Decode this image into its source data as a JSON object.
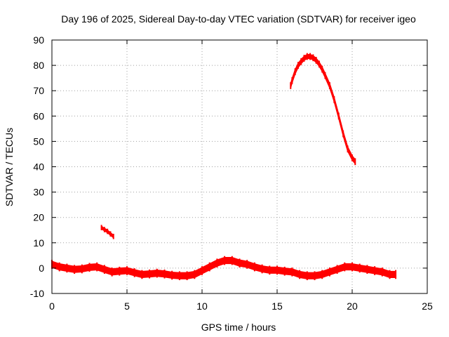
{
  "chart_data": {
    "type": "scatter",
    "title": "Day 196 of 2025, Sidereal Day-to-day VTEC variation (SDTVAR) for receiver igeo",
    "xlabel": "GPS time / hours",
    "ylabel": "SDTVAR / TECUs",
    "xlim": [
      0,
      25
    ],
    "ylim": [
      -10,
      90
    ],
    "xticks": [
      0,
      5,
      10,
      15,
      20,
      25
    ],
    "yticks": [
      -10,
      0,
      10,
      20,
      30,
      40,
      50,
      60,
      70,
      80,
      90
    ],
    "grid": true,
    "series_color": "#ff0000",
    "series": [
      {
        "name": "baseline",
        "band_halfwidth": 1.2,
        "x": [
          0,
          0.5,
          1,
          1.5,
          2,
          2.5,
          3,
          3.5,
          4,
          4.5,
          5,
          5.5,
          6,
          6.5,
          7,
          7.5,
          8,
          8.5,
          9,
          9.5,
          10,
          10.5,
          11,
          11.5,
          12,
          12.5,
          13,
          13.5,
          14,
          14.5,
          15,
          15.5,
          16,
          16.5,
          17,
          17.5,
          18,
          18.5,
          19,
          19.5,
          20,
          20.5,
          21,
          21.5,
          22,
          22.5,
          22.9
        ],
        "y": [
          1.5,
          0.5,
          0,
          -0.5,
          -0.3,
          0.3,
          0.5,
          -0.5,
          -1.5,
          -1.2,
          -1,
          -1.8,
          -2.5,
          -2.3,
          -2,
          -2.3,
          -2.8,
          -3,
          -3,
          -2.5,
          -1,
          0.5,
          2,
          3,
          3,
          2,
          1.5,
          0.5,
          -0.3,
          -0.8,
          -0.8,
          -1.2,
          -1.5,
          -2.5,
          -3,
          -3,
          -2.5,
          -1.5,
          -0.5,
          0.5,
          0.5,
          0,
          -0.5,
          -1,
          -1.5,
          -2.5,
          -2.5
        ]
      },
      {
        "name": "spike-1",
        "band_halfwidth": 0.5,
        "x": [
          3.3,
          3.5,
          3.7,
          3.9,
          4.1
        ],
        "y": [
          16,
          15.2,
          14.5,
          13.5,
          12.5
        ]
      },
      {
        "name": "arc",
        "band_halfwidth": 0.8,
        "x": [
          15.9,
          16,
          16.2,
          16.4,
          16.6,
          16.8,
          17,
          17.2,
          17.4,
          17.6,
          17.8,
          18,
          18.2,
          18.5,
          18.8,
          19.1,
          19.4,
          19.7,
          20,
          20.2
        ],
        "y": [
          72,
          74,
          77.5,
          80,
          81.5,
          82.8,
          83.5,
          83.5,
          83,
          82,
          80.5,
          78.5,
          76,
          72,
          66.5,
          60,
          53,
          47,
          43.5,
          42
        ]
      }
    ]
  }
}
